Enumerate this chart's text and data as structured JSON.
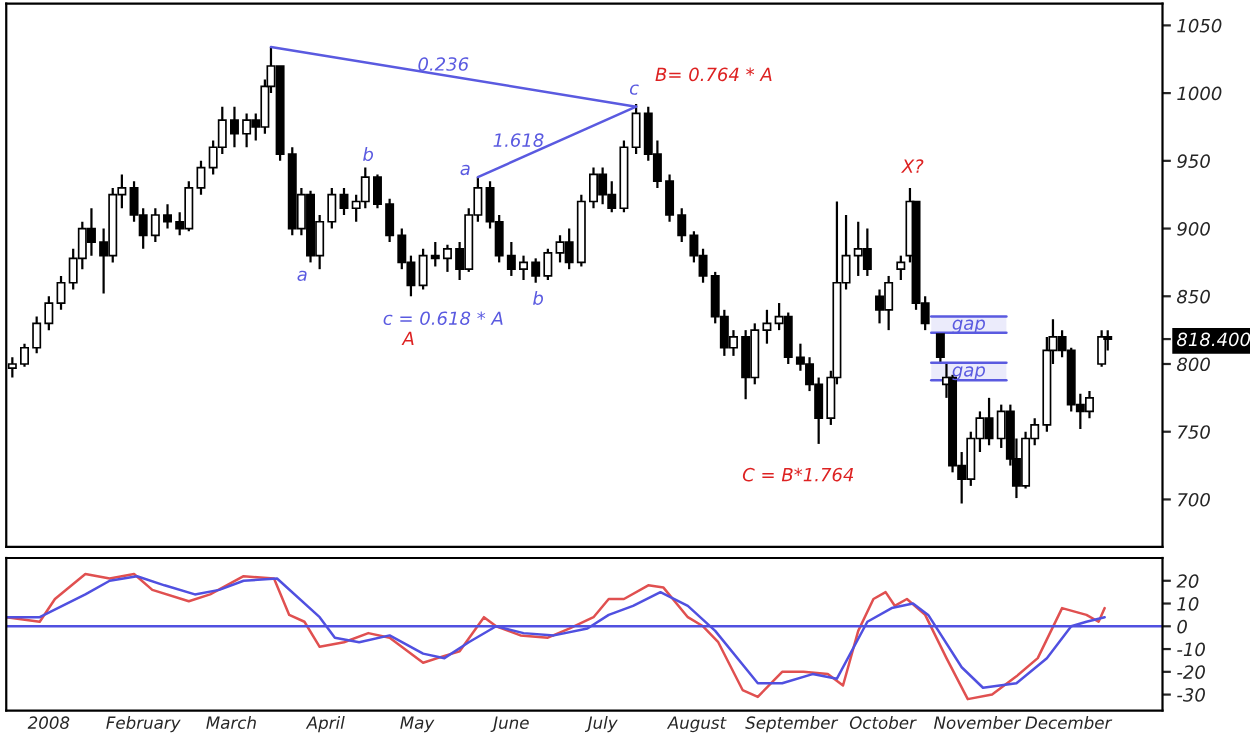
{
  "chart_data": [
    {
      "type": "candlestick",
      "x": [
        "2007-12-20",
        "2007-12-24",
        "2007-12-28",
        "2008-01-01",
        "2008-01-05",
        "2008-01-09",
        "2008-01-12",
        "2008-01-15",
        "2008-01-19",
        "2008-01-22",
        "2008-01-25",
        "2008-01-29",
        "2008-02-01",
        "2008-02-05",
        "2008-02-09",
        "2008-02-13",
        "2008-02-16",
        "2008-02-20",
        "2008-02-24",
        "2008-02-27",
        "2008-03-02",
        "2008-03-06",
        "2008-03-09",
        "2008-03-12",
        "2008-03-14",
        "2008-03-17",
        "2008-03-21",
        "2008-03-24",
        "2008-03-27",
        "2008-03-30",
        "2008-04-03",
        "2008-04-07",
        "2008-04-11",
        "2008-04-14",
        "2008-04-18",
        "2008-04-22",
        "2008-04-26",
        "2008-04-29",
        "2008-05-03",
        "2008-05-07",
        "2008-05-11",
        "2008-05-15",
        "2008-05-18",
        "2008-05-21",
        "2008-05-25",
        "2008-05-28",
        "2008-06-01",
        "2008-06-05",
        "2008-06-09",
        "2008-06-13",
        "2008-06-17",
        "2008-06-20",
        "2008-06-24",
        "2008-06-28",
        "2008-07-01",
        "2008-07-04",
        "2008-07-08",
        "2008-07-12",
        "2008-07-16",
        "2008-07-19",
        "2008-07-23",
        "2008-07-27",
        "2008-07-31",
        "2008-08-03",
        "2008-08-07",
        "2008-08-10",
        "2008-08-13",
        "2008-08-17",
        "2008-08-20",
        "2008-08-24",
        "2008-08-28",
        "2008-08-31",
        "2008-09-04",
        "2008-09-07",
        "2008-09-10",
        "2008-09-14",
        "2008-09-16",
        "2008-09-19",
        "2008-09-23",
        "2008-09-26",
        "2008-09-30",
        "2008-10-03",
        "2008-10-07",
        "2008-10-10",
        "2008-10-12",
        "2008-10-15",
        "2008-10-20",
        "2008-10-22",
        "2008-10-24",
        "2008-10-27",
        "2008-10-30",
        "2008-11-02",
        "2008-11-05",
        "2008-11-09",
        "2008-11-12",
        "2008-11-14",
        "2008-11-17",
        "2008-11-20",
        "2008-11-24",
        "2008-11-26",
        "2008-11-29",
        "2008-12-02",
        "2008-12-05",
        "2008-12-08",
        "2008-12-12",
        "2008-12-14"
      ],
      "ohlc": [
        [
          797,
          805,
          790,
          800
        ],
        [
          800,
          815,
          798,
          812
        ],
        [
          812,
          835,
          808,
          830
        ],
        [
          830,
          850,
          825,
          845
        ],
        [
          845,
          865,
          840,
          860
        ],
        [
          860,
          885,
          855,
          878
        ],
        [
          878,
          905,
          870,
          900
        ],
        [
          900,
          915,
          880,
          890
        ],
        [
          890,
          900,
          852,
          880
        ],
        [
          880,
          930,
          875,
          925
        ],
        [
          925,
          940,
          915,
          930
        ],
        [
          930,
          935,
          905,
          910
        ],
        [
          910,
          915,
          885,
          895
        ],
        [
          895,
          915,
          890,
          910
        ],
        [
          910,
          918,
          900,
          905
        ],
        [
          905,
          912,
          895,
          900
        ],
        [
          900,
          935,
          898,
          930
        ],
        [
          930,
          950,
          925,
          945
        ],
        [
          945,
          965,
          940,
          960
        ],
        [
          960,
          990,
          955,
          980
        ],
        [
          980,
          990,
          960,
          970
        ],
        [
          970,
          985,
          960,
          980
        ],
        [
          980,
          985,
          965,
          975
        ],
        [
          975,
          1010,
          970,
          1005
        ],
        [
          1005,
          1034,
          1000,
          1020
        ],
        [
          1020,
          1020,
          950,
          955
        ],
        [
          955,
          960,
          895,
          900
        ],
        [
          900,
          930,
          895,
          925
        ],
        [
          925,
          928,
          875,
          880
        ],
        [
          880,
          910,
          870,
          905
        ],
        [
          905,
          930,
          900,
          925
        ],
        [
          925,
          930,
          910,
          915
        ],
        [
          915,
          925,
          905,
          920
        ],
        [
          920,
          945,
          915,
          938
        ],
        [
          938,
          940,
          915,
          918
        ],
        [
          918,
          922,
          890,
          895
        ],
        [
          895,
          900,
          870,
          875
        ],
        [
          875,
          880,
          850,
          858
        ],
        [
          858,
          885,
          855,
          880
        ],
        [
          880,
          890,
          872,
          878
        ],
        [
          878,
          888,
          868,
          885
        ],
        [
          885,
          890,
          862,
          870
        ],
        [
          870,
          915,
          868,
          910
        ],
        [
          910,
          938,
          905,
          930
        ],
        [
          930,
          935,
          900,
          905
        ],
        [
          905,
          910,
          875,
          880
        ],
        [
          880,
          890,
          865,
          870
        ],
        [
          870,
          880,
          862,
          875
        ],
        [
          875,
          878,
          860,
          865
        ],
        [
          865,
          885,
          862,
          882
        ],
        [
          882,
          895,
          875,
          890
        ],
        [
          890,
          900,
          870,
          875
        ],
        [
          875,
          925,
          872,
          920
        ],
        [
          920,
          945,
          915,
          940
        ],
        [
          940,
          945,
          918,
          925
        ],
        [
          925,
          935,
          912,
          915
        ],
        [
          915,
          965,
          912,
          960
        ],
        [
          960,
          992,
          955,
          985
        ],
        [
          985,
          990,
          950,
          955
        ],
        [
          955,
          965,
          930,
          935
        ],
        [
          935,
          940,
          905,
          910
        ],
        [
          910,
          915,
          890,
          895
        ],
        [
          895,
          898,
          875,
          880
        ],
        [
          880,
          885,
          860,
          865
        ],
        [
          865,
          868,
          830,
          835
        ],
        [
          835,
          840,
          806,
          812
        ],
        [
          812,
          825,
          806,
          820
        ],
        [
          820,
          825,
          774,
          790
        ],
        [
          790,
          830,
          785,
          825
        ],
        [
          825,
          840,
          815,
          830
        ],
        [
          830,
          845,
          825,
          835
        ],
        [
          835,
          838,
          800,
          805
        ],
        [
          805,
          815,
          795,
          800
        ],
        [
          800,
          805,
          780,
          785
        ],
        [
          785,
          790,
          741,
          760
        ],
        [
          760,
          795,
          755,
          790
        ],
        [
          790,
          920,
          785,
          860
        ],
        [
          860,
          910,
          855,
          880
        ],
        [
          880,
          905,
          865,
          885
        ],
        [
          885,
          900,
          865,
          870
        ],
        [
          850,
          855,
          830,
          840
        ],
        [
          840,
          865,
          825,
          860
        ],
        [
          870,
          880,
          862,
          875
        ],
        [
          880,
          930,
          875,
          920
        ],
        [
          920,
          920,
          840,
          845
        ],
        [
          845,
          850,
          825,
          830
        ],
        [
          822,
          822,
          800,
          805
        ],
        [
          785,
          800,
          775,
          790
        ],
        [
          790,
          792,
          720,
          725
        ],
        [
          725,
          735,
          697,
          715
        ],
        [
          715,
          750,
          710,
          745
        ],
        [
          745,
          765,
          735,
          760
        ],
        [
          760,
          775,
          740,
          745
        ],
        [
          745,
          770,
          738,
          765
        ],
        [
          765,
          770,
          725,
          730
        ],
        [
          730,
          745,
          701,
          710
        ],
        [
          710,
          750,
          708,
          745
        ],
        [
          745,
          760,
          740,
          755
        ],
        [
          755,
          820,
          750,
          810
        ],
        [
          810,
          833,
          800,
          820
        ],
        [
          820,
          825,
          805,
          810
        ],
        [
          810,
          812,
          765,
          770
        ],
        [
          770,
          778,
          752,
          765
        ],
        [
          765,
          780,
          760,
          775
        ],
        [
          800,
          825,
          798,
          820
        ],
        [
          820,
          825,
          810,
          818.4
        ]
      ],
      "series": [
        {
          "type": "line",
          "color": "#5a5ae0",
          "x": [
            "2008-03-14",
            "2008-07-12"
          ],
          "values": [
            1034,
            990
          ]
        },
        {
          "type": "line",
          "color": "#5a5ae0",
          "x": [
            "2008-05-21",
            "2008-07-12"
          ],
          "values": [
            938,
            990
          ]
        }
      ],
      "xlim": [
        "2007-12-18",
        "2009-01-01"
      ],
      "ylim": [
        665,
        1066
      ],
      "yticks": [
        700,
        750,
        800,
        {
          "value": 818.4,
          "label": "818.400"
        },
        850,
        900,
        950,
        1000,
        1050
      ],
      "tick_labels": "y",
      "bands": [
        {
          "axis": "y",
          "from": 823,
          "to": 835,
          "label": "gap",
          "color": "#5a5ae0"
        },
        {
          "axis": "y",
          "from": 788,
          "to": 801,
          "label": "gap",
          "color": "#5a5ae0"
        }
      ],
      "annotations": [
        "0.236",
        "1.618",
        "a",
        "b",
        "a",
        "b",
        "c",
        "c = 0.618 * A",
        "A",
        "B= 0.764 * A",
        "X?",
        "C = B*1.764"
      ]
    },
    {
      "type": "line",
      "series": [
        {
          "color": "#e05050",
          "x": [
            "2007-12-18",
            "2007-12-29",
            "2008-01-03",
            "2008-01-13",
            "2008-01-21",
            "2008-01-29",
            "2008-02-04",
            "2008-02-16",
            "2008-02-23",
            "2008-03-05",
            "2008-03-15",
            "2008-03-20",
            "2008-03-25",
            "2008-03-30",
            "2008-04-07",
            "2008-04-15",
            "2008-04-22",
            "2008-05-03",
            "2008-05-10",
            "2008-05-15",
            "2008-05-23",
            "2008-05-27",
            "2008-06-04",
            "2008-06-13",
            "2008-06-20",
            "2008-06-28",
            "2008-07-03",
            "2008-07-08",
            "2008-07-16",
            "2008-07-21",
            "2008-07-29",
            "2008-08-03",
            "2008-08-08",
            "2008-08-16",
            "2008-08-21",
            "2008-08-29",
            "2008-09-05",
            "2008-09-13",
            "2008-09-18",
            "2008-09-23",
            "2008-09-28",
            "2008-10-02",
            "2008-10-05",
            "2008-10-09",
            "2008-10-15",
            "2008-10-22",
            "2008-10-29",
            "2008-11-06",
            "2008-11-14",
            "2008-11-21",
            "2008-11-29",
            "2008-12-07",
            "2008-12-11",
            "2008-12-13"
          ],
          "values": [
            4,
            2,
            12,
            23,
            21,
            23,
            16,
            11,
            14,
            22,
            21,
            5,
            2,
            -9,
            -7,
            -3,
            -5,
            -16,
            -13,
            -11,
            4,
            0,
            -4,
            -5,
            -1,
            4,
            12,
            12,
            18,
            17,
            4,
            0,
            -7,
            -28,
            -31,
            -20,
            -20,
            -21,
            -26,
            -2,
            12,
            15,
            9,
            12,
            5,
            -14,
            -32,
            -30,
            -22,
            -14,
            8,
            5,
            2,
            8
          ]
        },
        {
          "color": "#5050e0",
          "x": [
            "2007-12-18",
            "2007-12-29",
            "2008-01-13",
            "2008-01-21",
            "2008-01-30",
            "2008-02-08",
            "2008-02-18",
            "2008-02-26",
            "2008-03-05",
            "2008-03-16",
            "2008-03-30",
            "2008-04-04",
            "2008-04-12",
            "2008-04-22",
            "2008-05-03",
            "2008-05-10",
            "2008-05-18",
            "2008-05-27",
            "2008-06-05",
            "2008-06-15",
            "2008-06-26",
            "2008-07-03",
            "2008-07-11",
            "2008-07-20",
            "2008-07-29",
            "2008-08-07",
            "2008-08-21",
            "2008-08-29",
            "2008-09-08",
            "2008-09-16",
            "2008-09-26",
            "2008-10-04",
            "2008-10-11",
            "2008-10-16",
            "2008-10-27",
            "2008-11-03",
            "2008-11-14",
            "2008-11-24",
            "2008-12-02",
            "2008-12-07",
            "2008-12-13"
          ],
          "values": [
            4,
            4,
            14,
            20,
            22,
            18,
            14,
            16,
            20,
            21,
            4,
            -5,
            -7,
            -4,
            -12,
            -14,
            -7,
            0,
            -3,
            -4,
            -1,
            5,
            9,
            15,
            9,
            -2,
            -25,
            -25,
            -21,
            -23,
            2,
            8,
            10,
            5,
            -18,
            -27,
            -25,
            -14,
            0,
            2,
            4
          ]
        }
      ],
      "xlim": [
        "2007-12-18",
        "2009-01-01"
      ],
      "xticks": [
        {
          "value": "2008-01-01",
          "label": "2008"
        },
        {
          "value": "2008-02-01",
          "label": "February"
        },
        {
          "value": "2008-03-01",
          "label": "March"
        },
        {
          "value": "2008-04-01",
          "label": "April"
        },
        {
          "value": "2008-05-01",
          "label": "May"
        },
        {
          "value": "2008-06-01",
          "label": "June"
        },
        {
          "value": "2008-07-01",
          "label": "July"
        },
        {
          "value": "2008-08-01",
          "label": "August"
        },
        {
          "value": "2008-09-01",
          "label": "September"
        },
        {
          "value": "2008-10-01",
          "label": "October"
        },
        {
          "value": "2008-11-01",
          "label": "November"
        },
        {
          "value": "2008-12-01",
          "label": "December"
        }
      ],
      "ylim": [
        -37,
        30
      ],
      "yticks": [
        -30,
        -20,
        -10,
        0,
        10,
        20
      ],
      "ref_lines": [
        {
          "axis": "y",
          "value": 0,
          "color": "#5050e0"
        }
      ]
    }
  ]
}
